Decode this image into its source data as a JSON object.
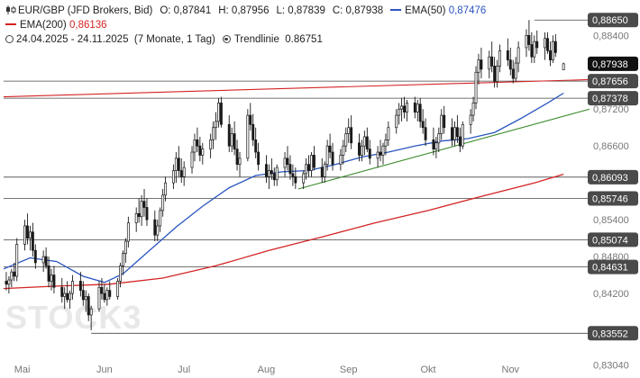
{
  "legend": {
    "instrument": "EUR/GBP (JFD Brokers, Bid)",
    "open": "O: 0,87841",
    "high": "H: 0,87956",
    "low": "L: 0,87839",
    "close": "C: 0,87938",
    "ema50_label": "EMA(50)",
    "ema50_value": "0,87476",
    "ema200_label": "EMA(200)",
    "ema200_value": "0,86136",
    "period": "24.04.2025 - 24.11.2025",
    "interval": "(7 Monate, 1 Tag)",
    "trendline_label": "Trendlinie",
    "trendline_value": "0.86751"
  },
  "watermark": "STOCK3",
  "colors": {
    "up": "#ffffff",
    "down": "#1a1a1a",
    "wick": "#1a1a1a",
    "ema50": "#2a55c0",
    "ema200": "#d42424",
    "trend_red": "#d42424",
    "trend_green": "#3a8a2a",
    "level_line": "#444444",
    "label_bg": "#4a4a4a",
    "label_text": "#ffffff",
    "axis_text": "#777777",
    "close_label_bg": "#111111"
  },
  "chart_data": {
    "type": "candlestick",
    "ylim": [
      0.83,
      0.888
    ],
    "y_ticks": [
      {
        "value": 0.884,
        "label": "0,88400"
      },
      {
        "value": 0.872,
        "label": "0,87200"
      },
      {
        "value": 0.866,
        "label": "0,86600"
      },
      {
        "value": 0.854,
        "label": "0,85400"
      },
      {
        "value": 0.848,
        "label": "0,84800"
      },
      {
        "value": 0.842,
        "label": "0,84200"
      },
      {
        "value": 0.8304,
        "label": "0,83040"
      }
    ],
    "x_ticks": [
      {
        "label": "Mai",
        "day": 7
      },
      {
        "label": "Jun",
        "day": 38
      },
      {
        "label": "Jul",
        "day": 68
      },
      {
        "label": "Aug",
        "day": 99
      },
      {
        "label": "Sep",
        "day": 130
      },
      {
        "label": "Okt",
        "day": 160
      },
      {
        "label": "Nov",
        "day": 191
      }
    ],
    "x_range_days": [
      0,
      214
    ],
    "levels": [
      {
        "value": 0.8865,
        "label": "0,88650",
        "from_day": 200
      },
      {
        "value": 0.87938,
        "label": "0,87938",
        "from_day": 211,
        "current": true
      },
      {
        "value": 0.87656,
        "label": "0,87656",
        "from_day": 0
      },
      {
        "value": 0.87378,
        "label": "0,87378",
        "from_day": 0
      },
      {
        "value": 0.86093,
        "label": "0,86093",
        "from_day": 0
      },
      {
        "value": 0.85746,
        "label": "0,85746",
        "from_day": 0
      },
      {
        "value": 0.85074,
        "label": "0,85074",
        "from_day": 0
      },
      {
        "value": 0.84631,
        "label": "0,84631",
        "from_day": 0
      },
      {
        "value": 0.83552,
        "label": "0,83552",
        "from_day": 33
      }
    ],
    "trendlines": [
      {
        "name": "Trendlinie",
        "color_key": "trend_red",
        "points": [
          [
            0,
            0.874
          ],
          [
            214,
            0.8768
          ]
        ]
      },
      {
        "name": "green-support",
        "color_key": "trend_green",
        "points": [
          [
            111,
            0.859
          ],
          [
            214,
            0.872
          ]
        ]
      }
    ],
    "ema_series": [
      {
        "name": "EMA(50)",
        "color_key": "ema50",
        "points": [
          [
            0,
            0.846
          ],
          [
            10,
            0.8478
          ],
          [
            20,
            0.8472
          ],
          [
            30,
            0.8448
          ],
          [
            38,
            0.8438
          ],
          [
            45,
            0.8452
          ],
          [
            55,
            0.849
          ],
          [
            65,
            0.8528
          ],
          [
            75,
            0.8562
          ],
          [
            85,
            0.8592
          ],
          [
            95,
            0.8612
          ],
          [
            105,
            0.8618
          ],
          [
            115,
            0.862
          ],
          [
            125,
            0.863
          ],
          [
            135,
            0.8642
          ],
          [
            145,
            0.865
          ],
          [
            155,
            0.866
          ],
          [
            165,
            0.8668
          ],
          [
            175,
            0.8672
          ],
          [
            185,
            0.8682
          ],
          [
            195,
            0.8705
          ],
          [
            205,
            0.873
          ],
          [
            211,
            0.8746
          ]
        ]
      },
      {
        "name": "EMA(200)",
        "color_key": "ema200",
        "points": [
          [
            0,
            0.8428
          ],
          [
            20,
            0.8432
          ],
          [
            40,
            0.8435
          ],
          [
            60,
            0.8445
          ],
          [
            80,
            0.8465
          ],
          [
            100,
            0.849
          ],
          [
            120,
            0.8512
          ],
          [
            140,
            0.8535
          ],
          [
            160,
            0.8555
          ],
          [
            180,
            0.8578
          ],
          [
            200,
            0.86
          ],
          [
            211,
            0.8614
          ]
        ]
      }
    ],
    "candles": [
      [
        1,
        0.844,
        0.8455,
        0.8425,
        0.8435
      ],
      [
        2,
        0.8435,
        0.8448,
        0.842,
        0.8442
      ],
      [
        3,
        0.8442,
        0.846,
        0.843,
        0.8455
      ],
      [
        4,
        0.8455,
        0.847,
        0.844,
        0.8448
      ],
      [
        5,
        0.8448,
        0.851,
        0.844,
        0.85
      ],
      [
        8,
        0.85,
        0.854,
        0.849,
        0.853
      ],
      [
        9,
        0.853,
        0.855,
        0.85,
        0.851
      ],
      [
        10,
        0.851,
        0.853,
        0.849,
        0.852
      ],
      [
        11,
        0.852,
        0.8535,
        0.848,
        0.849
      ],
      [
        12,
        0.849,
        0.85,
        0.846,
        0.847
      ],
      [
        15,
        0.847,
        0.849,
        0.8455,
        0.848
      ],
      [
        16,
        0.848,
        0.8495,
        0.846,
        0.8465
      ],
      [
        17,
        0.8465,
        0.848,
        0.843,
        0.844
      ],
      [
        18,
        0.844,
        0.846,
        0.8425,
        0.845
      ],
      [
        19,
        0.845,
        0.8465,
        0.842,
        0.843
      ],
      [
        22,
        0.843,
        0.8445,
        0.8405,
        0.8415
      ],
      [
        23,
        0.8415,
        0.843,
        0.8395,
        0.842
      ],
      [
        24,
        0.842,
        0.844,
        0.8405,
        0.841
      ],
      [
        25,
        0.841,
        0.8425,
        0.8395,
        0.842
      ],
      [
        26,
        0.842,
        0.845,
        0.841,
        0.844
      ],
      [
        29,
        0.844,
        0.8455,
        0.8415,
        0.8425
      ],
      [
        30,
        0.8425,
        0.844,
        0.84,
        0.841
      ],
      [
        31,
        0.841,
        0.8425,
        0.839,
        0.8415
      ],
      [
        32,
        0.8415,
        0.842,
        0.8375,
        0.8385
      ],
      [
        33,
        0.8385,
        0.84,
        0.836,
        0.8395
      ],
      [
        36,
        0.8395,
        0.844,
        0.839,
        0.843
      ],
      [
        37,
        0.843,
        0.8445,
        0.841,
        0.842
      ],
      [
        38,
        0.842,
        0.8435,
        0.8405,
        0.841
      ],
      [
        39,
        0.841,
        0.843,
        0.84,
        0.8425
      ],
      [
        40,
        0.8425,
        0.844,
        0.841,
        0.8415
      ],
      [
        43,
        0.8415,
        0.8445,
        0.841,
        0.844
      ],
      [
        44,
        0.844,
        0.847,
        0.843,
        0.8465
      ],
      [
        45,
        0.8465,
        0.849,
        0.845,
        0.8485
      ],
      [
        46,
        0.8485,
        0.851,
        0.847,
        0.8505
      ],
      [
        47,
        0.8505,
        0.8545,
        0.8495,
        0.8535
      ],
      [
        50,
        0.8535,
        0.856,
        0.852,
        0.855
      ],
      [
        51,
        0.855,
        0.8575,
        0.8535,
        0.8545
      ],
      [
        52,
        0.8545,
        0.858,
        0.853,
        0.857
      ],
      [
        53,
        0.857,
        0.859,
        0.8545,
        0.856
      ],
      [
        54,
        0.856,
        0.8575,
        0.853,
        0.854
      ],
      [
        57,
        0.854,
        0.8555,
        0.8505,
        0.8515
      ],
      [
        58,
        0.8515,
        0.854,
        0.8505,
        0.853
      ],
      [
        59,
        0.853,
        0.856,
        0.852,
        0.8555
      ],
      [
        60,
        0.8555,
        0.859,
        0.8545,
        0.858
      ],
      [
        61,
        0.858,
        0.861,
        0.857,
        0.86
      ],
      [
        64,
        0.86,
        0.863,
        0.859,
        0.862
      ],
      [
        65,
        0.862,
        0.865,
        0.86,
        0.864
      ],
      [
        66,
        0.864,
        0.866,
        0.861,
        0.862
      ],
      [
        67,
        0.862,
        0.864,
        0.86,
        0.861
      ],
      [
        68,
        0.861,
        0.8635,
        0.8595,
        0.8625
      ],
      [
        71,
        0.8625,
        0.866,
        0.8615,
        0.865
      ],
      [
        72,
        0.865,
        0.868,
        0.8635,
        0.867
      ],
      [
        73,
        0.867,
        0.869,
        0.865,
        0.866
      ],
      [
        74,
        0.866,
        0.8675,
        0.8635,
        0.8645
      ],
      [
        75,
        0.8645,
        0.8665,
        0.863,
        0.8655
      ],
      [
        78,
        0.8655,
        0.868,
        0.864,
        0.867
      ],
      [
        79,
        0.867,
        0.87,
        0.8655,
        0.869
      ],
      [
        80,
        0.869,
        0.8715,
        0.867,
        0.87
      ],
      [
        81,
        0.87,
        0.8738,
        0.869,
        0.873
      ],
      [
        82,
        0.873,
        0.874,
        0.869,
        0.8695
      ],
      [
        85,
        0.8695,
        0.871,
        0.865,
        0.866
      ],
      [
        86,
        0.866,
        0.869,
        0.865,
        0.868
      ],
      [
        87,
        0.868,
        0.87,
        0.8645,
        0.8655
      ],
      [
        88,
        0.8655,
        0.867,
        0.862,
        0.863
      ],
      [
        89,
        0.863,
        0.865,
        0.861,
        0.864
      ],
      [
        92,
        0.864,
        0.872,
        0.8635,
        0.871
      ],
      [
        93,
        0.871,
        0.873,
        0.8685,
        0.8695
      ],
      [
        94,
        0.8695,
        0.8712,
        0.866,
        0.867
      ],
      [
        95,
        0.867,
        0.869,
        0.864,
        0.865
      ],
      [
        96,
        0.865,
        0.8665,
        0.862,
        0.863
      ],
      [
        99,
        0.863,
        0.8645,
        0.86,
        0.861
      ],
      [
        100,
        0.861,
        0.863,
        0.859,
        0.862
      ],
      [
        101,
        0.862,
        0.864,
        0.8605,
        0.8615
      ],
      [
        102,
        0.8615,
        0.8625,
        0.8595,
        0.8605
      ],
      [
        103,
        0.8605,
        0.863,
        0.8595,
        0.8625
      ],
      [
        106,
        0.8625,
        0.865,
        0.861,
        0.864
      ],
      [
        107,
        0.864,
        0.866,
        0.862,
        0.863
      ],
      [
        108,
        0.863,
        0.8645,
        0.8605,
        0.8615
      ],
      [
        109,
        0.8615,
        0.863,
        0.8595,
        0.861
      ],
      [
        110,
        0.861,
        0.8625,
        0.859,
        0.86
      ],
      [
        113,
        0.86,
        0.862,
        0.859,
        0.8615
      ],
      [
        114,
        0.8615,
        0.864,
        0.8605,
        0.863
      ],
      [
        115,
        0.863,
        0.8645,
        0.861,
        0.862
      ],
      [
        116,
        0.862,
        0.865,
        0.861,
        0.8645
      ],
      [
        117,
        0.8645,
        0.866,
        0.862,
        0.8625
      ],
      [
        120,
        0.8625,
        0.864,
        0.86,
        0.861
      ],
      [
        121,
        0.861,
        0.8635,
        0.86,
        0.863
      ],
      [
        122,
        0.863,
        0.867,
        0.862,
        0.866
      ],
      [
        123,
        0.866,
        0.868,
        0.864,
        0.865
      ],
      [
        124,
        0.865,
        0.8665,
        0.862,
        0.863
      ],
      [
        127,
        0.863,
        0.8655,
        0.862,
        0.8645
      ],
      [
        128,
        0.8645,
        0.867,
        0.863,
        0.866
      ],
      [
        129,
        0.866,
        0.869,
        0.865,
        0.868
      ],
      [
        130,
        0.868,
        0.8705,
        0.8665,
        0.869
      ],
      [
        131,
        0.869,
        0.871,
        0.8655,
        0.8665
      ],
      [
        134,
        0.8665,
        0.868,
        0.8635,
        0.8645
      ],
      [
        135,
        0.8645,
        0.867,
        0.8635,
        0.866
      ],
      [
        136,
        0.866,
        0.8685,
        0.8645,
        0.8675
      ],
      [
        137,
        0.8675,
        0.869,
        0.865,
        0.8655
      ],
      [
        138,
        0.8655,
        0.867,
        0.863,
        0.864
      ],
      [
        141,
        0.864,
        0.866,
        0.8625,
        0.865
      ],
      [
        142,
        0.865,
        0.867,
        0.8635,
        0.8645
      ],
      [
        143,
        0.8645,
        0.8665,
        0.863,
        0.866
      ],
      [
        144,
        0.866,
        0.868,
        0.8645,
        0.867
      ],
      [
        145,
        0.867,
        0.87,
        0.866,
        0.869
      ],
      [
        148,
        0.869,
        0.872,
        0.868,
        0.871
      ],
      [
        149,
        0.871,
        0.873,
        0.8695,
        0.872
      ],
      [
        150,
        0.872,
        0.8738,
        0.87,
        0.8725
      ],
      [
        151,
        0.8725,
        0.874,
        0.8705,
        0.8715
      ],
      [
        152,
        0.8715,
        0.8735,
        0.87,
        0.873
      ],
      [
        155,
        0.873,
        0.874,
        0.8705,
        0.8715
      ],
      [
        156,
        0.8715,
        0.8735,
        0.87,
        0.8728
      ],
      [
        157,
        0.8728,
        0.8738,
        0.869,
        0.87
      ],
      [
        158,
        0.87,
        0.872,
        0.868,
        0.869
      ],
      [
        159,
        0.869,
        0.8705,
        0.866,
        0.867
      ],
      [
        162,
        0.867,
        0.869,
        0.8645,
        0.8655
      ],
      [
        163,
        0.8655,
        0.8675,
        0.864,
        0.8665
      ],
      [
        164,
        0.8665,
        0.869,
        0.865,
        0.868
      ],
      [
        165,
        0.868,
        0.872,
        0.867,
        0.871
      ],
      [
        166,
        0.871,
        0.8725,
        0.868,
        0.869
      ],
      [
        169,
        0.869,
        0.8705,
        0.866,
        0.867
      ],
      [
        170,
        0.867,
        0.87,
        0.866,
        0.869
      ],
      [
        171,
        0.869,
        0.871,
        0.8665,
        0.8675
      ],
      [
        172,
        0.8675,
        0.869,
        0.865,
        0.866
      ],
      [
        173,
        0.866,
        0.87,
        0.8655,
        0.8695
      ],
      [
        176,
        0.8695,
        0.872,
        0.868,
        0.871
      ],
      [
        177,
        0.871,
        0.874,
        0.87,
        0.873
      ],
      [
        178,
        0.873,
        0.879,
        0.872,
        0.878
      ],
      [
        179,
        0.878,
        0.881,
        0.876,
        0.88
      ],
      [
        180,
        0.88,
        0.882,
        0.877,
        0.8785
      ],
      [
        183,
        0.8785,
        0.8815,
        0.877,
        0.8805
      ],
      [
        184,
        0.8805,
        0.883,
        0.878,
        0.879
      ],
      [
        185,
        0.879,
        0.8805,
        0.8755,
        0.8765
      ],
      [
        186,
        0.8765,
        0.88,
        0.8755,
        0.879
      ],
      [
        187,
        0.879,
        0.8825,
        0.878,
        0.8815
      ],
      [
        190,
        0.8815,
        0.8835,
        0.879,
        0.88
      ],
      [
        191,
        0.88,
        0.882,
        0.8775,
        0.8785
      ],
      [
        192,
        0.8785,
        0.88,
        0.8762,
        0.877
      ],
      [
        193,
        0.877,
        0.8805,
        0.8765,
        0.8795
      ],
      [
        194,
        0.8795,
        0.883,
        0.878,
        0.882
      ],
      [
        197,
        0.882,
        0.885,
        0.8805,
        0.884
      ],
      [
        198,
        0.884,
        0.8865,
        0.8815,
        0.8825
      ],
      [
        199,
        0.8825,
        0.8845,
        0.8795,
        0.8805
      ],
      [
        200,
        0.8805,
        0.884,
        0.8795,
        0.883
      ],
      [
        201,
        0.883,
        0.8848,
        0.881,
        0.882
      ],
      [
        204,
        0.882,
        0.8845,
        0.88,
        0.8835
      ],
      [
        205,
        0.8835,
        0.8845,
        0.881,
        0.8815
      ],
      [
        206,
        0.8815,
        0.883,
        0.879,
        0.88
      ],
      [
        207,
        0.88,
        0.884,
        0.8795,
        0.883
      ],
      [
        208,
        0.883,
        0.8842,
        0.8805,
        0.8812
      ],
      [
        211,
        0.87841,
        0.87956,
        0.87839,
        0.87938
      ]
    ]
  }
}
